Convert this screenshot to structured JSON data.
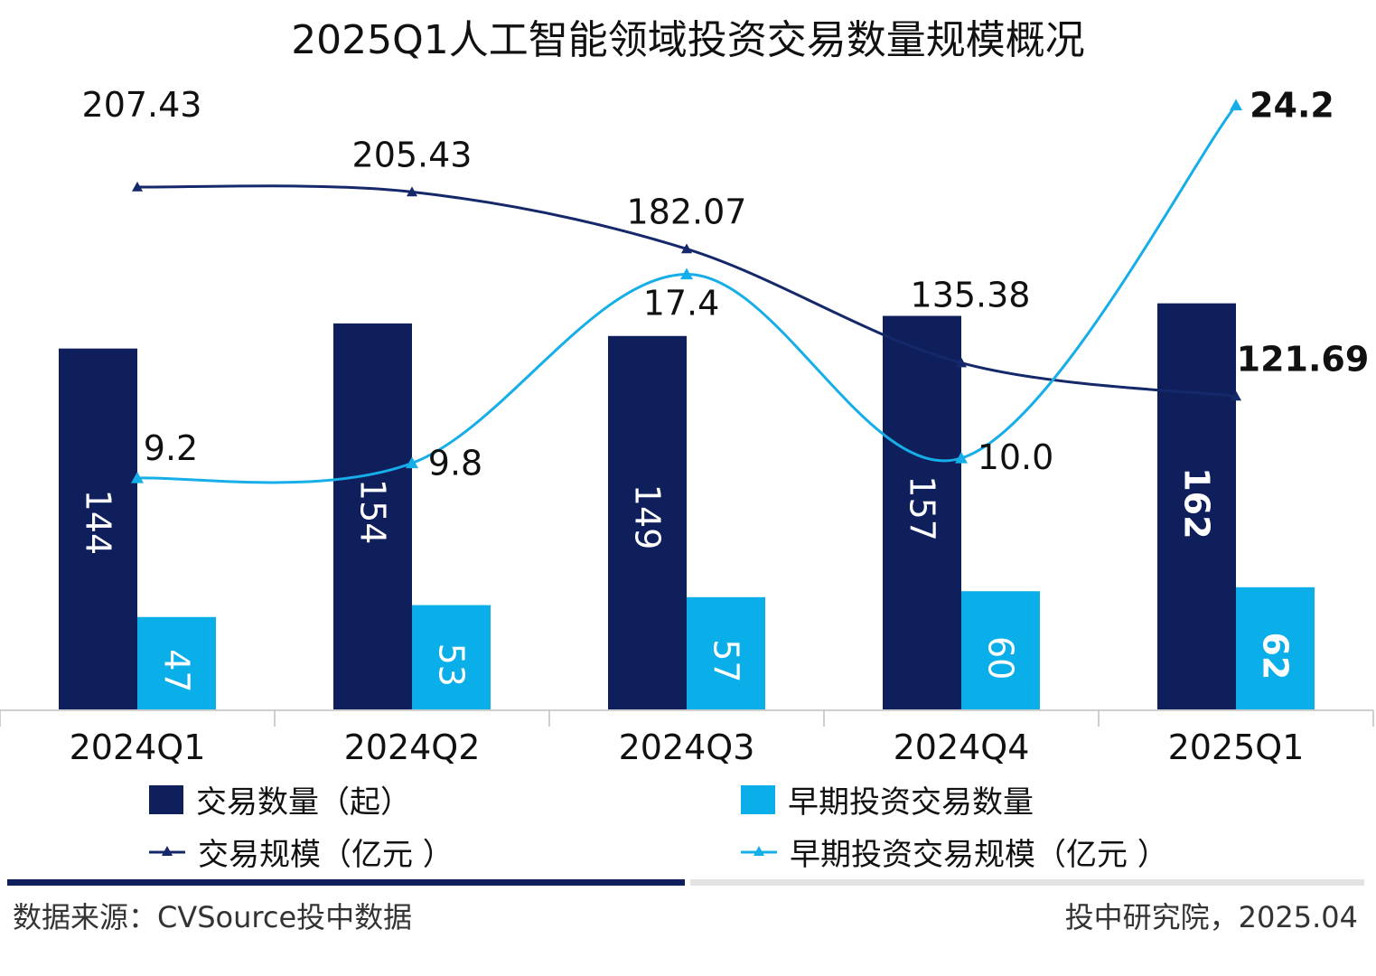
{
  "chart_data": {
    "type": "bar",
    "title": "2025Q1人工智能领域投资交易数量规模概况",
    "categories": [
      "2024Q1",
      "2024Q2",
      "2024Q3",
      "2024Q4",
      "2025Q1"
    ],
    "series": [
      {
        "name": "交易数量（起）",
        "kind": "bar",
        "color": "#0f1f5c",
        "values": [
          144,
          154,
          149,
          157,
          162
        ],
        "labels": [
          "144",
          "154",
          "149",
          "157",
          "162"
        ]
      },
      {
        "name": "早期投资交易数量",
        "kind": "bar",
        "color": "#0aaee8",
        "values": [
          47,
          53,
          57,
          60,
          62
        ],
        "labels": [
          "47",
          "53",
          "57",
          "60",
          "62"
        ]
      },
      {
        "name": "交易规模（亿元 ）",
        "kind": "line",
        "color": "#14286a",
        "values": [
          207.43,
          205.43,
          182.07,
          135.38,
          121.69
        ],
        "labels": [
          "207.43",
          "205.43",
          "182.07",
          "135.38",
          "121.69"
        ]
      },
      {
        "name": "早期投资交易规模（亿元 ）",
        "kind": "line",
        "color": "#16aee8",
        "values": [
          9.2,
          9.8,
          17.4,
          10.0,
          24.2
        ],
        "labels": [
          "9.2",
          "9.8",
          "17.4",
          "10.0",
          "24.2"
        ]
      }
    ],
    "legend_position": "bottom",
    "grid": false
  },
  "footer": {
    "source": "数据来源：CVSource投中数据",
    "publisher": "投中研究院，2025.04"
  }
}
